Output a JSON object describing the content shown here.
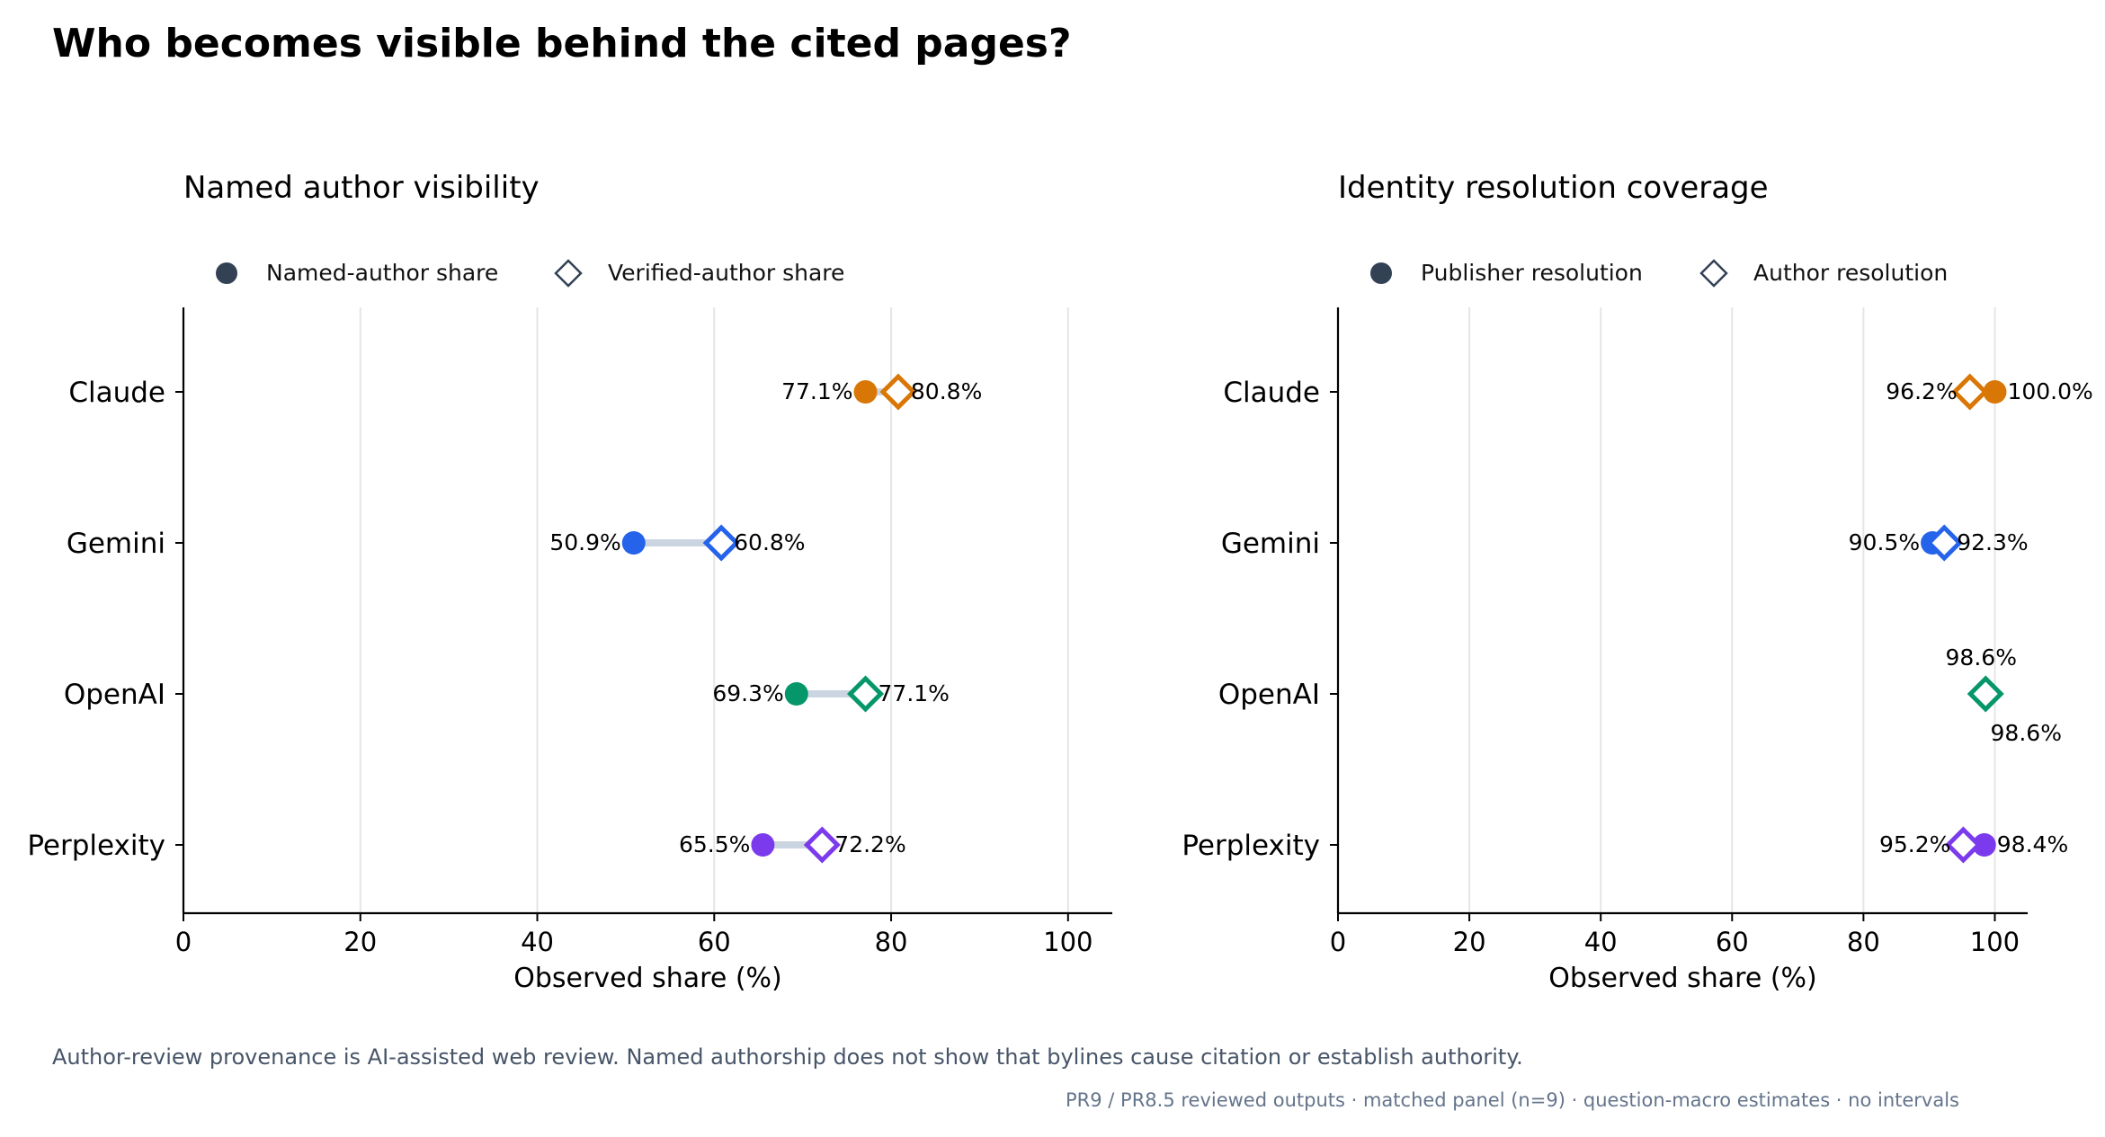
{
  "title": "Who becomes visible behind the cited pages?",
  "footnote": "Author-review provenance is AI-assisted web review. Named authorship does not show that bylines cause citation or establish authority.",
  "source_note": "PR9 / PR8.5 reviewed outputs · matched panel (n=9) · question-macro estimates · no intervals",
  "chart_data": [
    {
      "type": "dumbbell",
      "title": "Named author visibility",
      "xlabel": "Observed share (%)",
      "ylabel": "",
      "xlim": [
        0,
        105
      ],
      "xticks": [
        0,
        20,
        40,
        60,
        80,
        100
      ],
      "grid": "vertical",
      "legend_position": "top",
      "legend": [
        {
          "name": "Named-author share",
          "marker": "circle"
        },
        {
          "name": "Verified-author share",
          "marker": "diamond"
        }
      ],
      "categories": [
        "Claude",
        "Gemini",
        "OpenAI",
        "Perplexity"
      ],
      "colors": [
        "#d97706",
        "#2563eb",
        "#059669",
        "#7c3aed"
      ],
      "series": [
        {
          "name": "Named-author share",
          "marker": "circle",
          "values": [
            77.1,
            50.9,
            69.3,
            65.5
          ],
          "labels": [
            "77.1%",
            "50.9%",
            "69.3%",
            "65.5%"
          ]
        },
        {
          "name": "Verified-author share",
          "marker": "diamond",
          "values": [
            80.8,
            60.8,
            77.1,
            72.2
          ],
          "labels": [
            "80.8%",
            "60.8%",
            "77.1%",
            "72.2%"
          ]
        }
      ]
    },
    {
      "type": "dumbbell",
      "title": "Identity resolution coverage",
      "xlabel": "Observed share (%)",
      "ylabel": "",
      "xlim": [
        0,
        105
      ],
      "xticks": [
        0,
        20,
        40,
        60,
        80,
        100
      ],
      "grid": "vertical",
      "legend_position": "top",
      "legend": [
        {
          "name": "Publisher resolution",
          "marker": "circle"
        },
        {
          "name": "Author resolution",
          "marker": "diamond"
        }
      ],
      "categories": [
        "Claude",
        "Gemini",
        "OpenAI",
        "Perplexity"
      ],
      "colors": [
        "#d97706",
        "#2563eb",
        "#059669",
        "#7c3aed"
      ],
      "series": [
        {
          "name": "Publisher resolution",
          "marker": "circle",
          "values": [
            100.0,
            90.5,
            98.6,
            98.4
          ],
          "labels": [
            "100.0%",
            "90.5%",
            "98.6%",
            "98.4%"
          ]
        },
        {
          "name": "Author resolution",
          "marker": "diamond",
          "values": [
            96.2,
            92.3,
            98.6,
            95.2
          ],
          "labels": [
            "96.2%",
            "92.3%",
            "98.6%",
            "95.2%"
          ]
        }
      ]
    }
  ]
}
